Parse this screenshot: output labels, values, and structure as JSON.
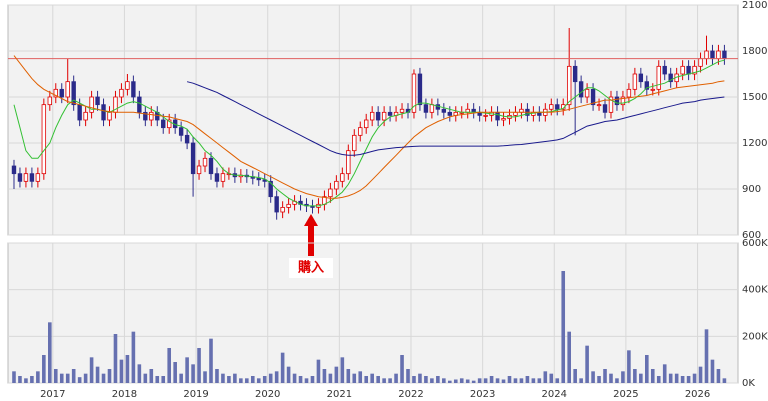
{
  "chart_data": [
    {
      "type": "candlestick",
      "ylim": [
        600,
        2100
      ],
      "yticks": [
        600,
        900,
        1200,
        1500,
        1800,
        2100
      ],
      "grid": true,
      "up_color": "#e00000",
      "down_color": "#2b2b8a",
      "reference_line": 1750,
      "reference_color": "#e06060",
      "annotation": "購入",
      "annotation_color": "#e00000",
      "open": [
        1050,
        1000,
        950,
        1000,
        950,
        1000,
        1450,
        1500,
        1550,
        1500,
        1600,
        1450,
        1350,
        1400,
        1500,
        1450,
        1350,
        1400,
        1500,
        1550,
        1600,
        1500,
        1400,
        1350,
        1400,
        1350,
        1300,
        1350,
        1300,
        1250,
        1200,
        1000,
        1050,
        1100,
        1000,
        950,
        1000,
        1000,
        980,
        990,
        980,
        970,
        960,
        950,
        850,
        750,
        780,
        800,
        820,
        800,
        790,
        780,
        800,
        850,
        900,
        950,
        1000,
        1150,
        1250,
        1300,
        1350,
        1400,
        1350,
        1400,
        1380,
        1400,
        1420,
        1400,
        1650,
        1450,
        1400,
        1450,
        1420,
        1400,
        1380,
        1400,
        1400,
        1420,
        1400,
        1380,
        1380,
        1400,
        1350,
        1360,
        1380,
        1400,
        1420,
        1380,
        1400,
        1380,
        1420,
        1450,
        1420,
        1450,
        1700,
        1600,
        1500,
        1550,
        1450,
        1450,
        1400,
        1500,
        1450,
        1500,
        1550,
        1650,
        1600,
        1550,
        1550,
        1700,
        1650,
        1600,
        1650,
        1700,
        1650,
        1700,
        1750,
        1800,
        1750,
        1800
      ],
      "high": [
        1090,
        1040,
        1040,
        1040,
        1040,
        1490,
        1540,
        1590,
        1590,
        1750,
        1640,
        1490,
        1440,
        1540,
        1540,
        1490,
        1440,
        1540,
        1590,
        1650,
        1640,
        1540,
        1440,
        1440,
        1440,
        1390,
        1390,
        1390,
        1340,
        1290,
        1240,
        1090,
        1140,
        1140,
        1040,
        1040,
        1040,
        1040,
        1030,
        1030,
        1020,
        1010,
        1000,
        990,
        890,
        820,
        840,
        860,
        860,
        840,
        830,
        840,
        890,
        940,
        990,
        1040,
        1190,
        1290,
        1340,
        1390,
        1440,
        1440,
        1440,
        1440,
        1440,
        1460,
        1460,
        1680,
        1690,
        1490,
        1490,
        1490,
        1460,
        1440,
        1440,
        1440,
        1460,
        1460,
        1440,
        1420,
        1440,
        1440,
        1400,
        1420,
        1440,
        1460,
        1460,
        1440,
        1440,
        1460,
        1490,
        1490,
        1490,
        1950,
        1740,
        1640,
        1590,
        1590,
        1490,
        1490,
        1540,
        1540,
        1540,
        1590,
        1690,
        1690,
        1640,
        1590,
        1740,
        1740,
        1690,
        1690,
        1740,
        1740,
        1740,
        1790,
        1900,
        1840,
        1840,
        1840
      ],
      "low": [
        900,
        910,
        910,
        910,
        910,
        960,
        1410,
        1460,
        1460,
        1460,
        1410,
        1310,
        1310,
        1360,
        1410,
        1310,
        1310,
        1360,
        1460,
        1510,
        1460,
        1360,
        1310,
        1310,
        1310,
        1260,
        1260,
        1260,
        1210,
        1160,
        850,
        960,
        1010,
        960,
        910,
        910,
        960,
        940,
        940,
        940,
        930,
        920,
        910,
        810,
        700,
        710,
        740,
        760,
        760,
        750,
        740,
        740,
        760,
        810,
        860,
        910,
        960,
        1110,
        1210,
        1260,
        1310,
        1310,
        1310,
        1340,
        1340,
        1360,
        1360,
        1360,
        1410,
        1360,
        1360,
        1380,
        1360,
        1340,
        1340,
        1360,
        1360,
        1360,
        1340,
        1340,
        1340,
        1310,
        1310,
        1320,
        1340,
        1360,
        1340,
        1340,
        1340,
        1340,
        1380,
        1380,
        1380,
        1410,
        1250,
        1460,
        1460,
        1410,
        1410,
        1360,
        1360,
        1410,
        1410,
        1460,
        1510,
        1560,
        1510,
        1510,
        1510,
        1610,
        1560,
        1560,
        1610,
        1610,
        1610,
        1660,
        1710,
        1710,
        1710,
        1710
      ],
      "close": [
        1000,
        950,
        1000,
        950,
        1000,
        1450,
        1500,
        1550,
        1500,
        1600,
        1450,
        1350,
        1400,
        1500,
        1450,
        1350,
        1400,
        1500,
        1550,
        1600,
        1500,
        1400,
        1350,
        1400,
        1350,
        1300,
        1350,
        1300,
        1250,
        1200,
        1000,
        1050,
        1100,
        1000,
        950,
        1000,
        1000,
        980,
        990,
        980,
        970,
        960,
        950,
        850,
        750,
        780,
        800,
        820,
        800,
        790,
        780,
        800,
        850,
        900,
        950,
        1000,
        1150,
        1250,
        1300,
        1350,
        1400,
        1350,
        1400,
        1380,
        1400,
        1420,
        1400,
        1650,
        1450,
        1400,
        1450,
        1420,
        1400,
        1380,
        1400,
        1400,
        1420,
        1400,
        1380,
        1380,
        1400,
        1350,
        1360,
        1380,
        1400,
        1420,
        1380,
        1400,
        1380,
        1420,
        1450,
        1420,
        1450,
        1700,
        1600,
        1500,
        1550,
        1450,
        1450,
        1400,
        1500,
        1450,
        1500,
        1550,
        1650,
        1600,
        1550,
        1550,
        1700,
        1650,
        1600,
        1650,
        1700,
        1650,
        1700,
        1750,
        1800,
        1750,
        1800,
        1750
      ],
      "series": [
        {
          "color": "#33c033",
          "values": [
            1450,
            1300,
            1150,
            1100,
            1100,
            1150,
            1200,
            1300,
            1380,
            1450,
            1480,
            1460,
            1440,
            1420,
            1420,
            1410,
            1400,
            1420,
            1440,
            1460,
            1470,
            1460,
            1440,
            1420,
            1400,
            1370,
            1340,
            1320,
            1310,
            1290,
            1240,
            1200,
            1150,
            1120,
            1080,
            1030,
            1000,
            990,
            990,
            985,
            980,
            975,
            965,
            940,
            900,
            870,
            840,
            820,
            800,
            790,
            790,
            790,
            800,
            820,
            850,
            880,
            930,
            1000,
            1080,
            1160,
            1240,
            1300,
            1340,
            1370,
            1380,
            1390,
            1400,
            1440,
            1460,
            1460,
            1450,
            1440,
            1430,
            1420,
            1410,
            1400,
            1400,
            1400,
            1400,
            1395,
            1390,
            1385,
            1375,
            1370,
            1370,
            1380,
            1390,
            1395,
            1400,
            1400,
            1405,
            1415,
            1425,
            1470,
            1500,
            1530,
            1560,
            1560,
            1540,
            1510,
            1480,
            1460,
            1460,
            1470,
            1490,
            1520,
            1560,
            1570,
            1580,
            1590,
            1610,
            1630,
            1640,
            1650,
            1660,
            1670,
            1690,
            1710,
            1730,
            1740
          ]
        },
        {
          "color": "#e06000",
          "values": [
            1770,
            1720,
            1670,
            1620,
            1580,
            1550,
            1530,
            1510,
            1490,
            1470,
            1460,
            1450,
            1440,
            1430,
            1420,
            1410,
            1405,
            1400,
            1400,
            1400,
            1400,
            1395,
            1390,
            1385,
            1380,
            1375,
            1370,
            1360,
            1350,
            1340,
            1320,
            1290,
            1260,
            1230,
            1200,
            1170,
            1140,
            1110,
            1080,
            1060,
            1040,
            1020,
            1000,
            980,
            960,
            940,
            920,
            900,
            885,
            870,
            860,
            850,
            845,
            840,
            840,
            845,
            855,
            870,
            890,
            920,
            960,
            1000,
            1040,
            1080,
            1120,
            1160,
            1200,
            1240,
            1270,
            1300,
            1320,
            1340,
            1355,
            1370,
            1380,
            1385,
            1390,
            1395,
            1400,
            1400,
            1400,
            1400,
            1400,
            1400,
            1400,
            1400,
            1400,
            1400,
            1400,
            1400,
            1400,
            1405,
            1410,
            1420,
            1430,
            1440,
            1450,
            1460,
            1470,
            1480,
            1480,
            1485,
            1490,
            1495,
            1500,
            1505,
            1510,
            1520,
            1530,
            1540,
            1550,
            1560,
            1565,
            1570,
            1575,
            1580,
            1585,
            1590,
            1600,
            1605
          ]
        },
        {
          "color": "#1a1a8c",
          "values": [
            null,
            null,
            null,
            null,
            null,
            null,
            null,
            null,
            null,
            null,
            null,
            null,
            null,
            null,
            null,
            null,
            null,
            null,
            null,
            null,
            null,
            null,
            null,
            null,
            null,
            null,
            null,
            null,
            null,
            1600,
            1590,
            1575,
            1560,
            1545,
            1530,
            1510,
            1490,
            1470,
            1450,
            1430,
            1410,
            1390,
            1370,
            1350,
            1330,
            1310,
            1290,
            1270,
            1250,
            1230,
            1210,
            1190,
            1170,
            1150,
            1135,
            1125,
            1120,
            1120,
            1125,
            1135,
            1145,
            1155,
            1160,
            1165,
            1170,
            1172,
            1175,
            1178,
            1180,
            1180,
            1180,
            1180,
            1180,
            1180,
            1180,
            1180,
            1180,
            1180,
            1180,
            1180,
            1180,
            1180,
            1182,
            1185,
            1188,
            1190,
            1195,
            1200,
            1205,
            1210,
            1215,
            1220,
            1230,
            1250,
            1270,
            1290,
            1310,
            1320,
            1330,
            1340,
            1345,
            1350,
            1360,
            1370,
            1380,
            1390,
            1400,
            1410,
            1420,
            1430,
            1440,
            1450,
            1460,
            1465,
            1470,
            1480,
            1485,
            1490,
            1495,
            1500
          ]
        }
      ]
    },
    {
      "type": "bar",
      "color": "#6670b0",
      "ylim": [
        0,
        600000
      ],
      "yticks": [
        {
          "value": 0,
          "label": "0K"
        },
        {
          "value": 200000,
          "label": "200K"
        },
        {
          "value": 400000,
          "label": "400K"
        },
        {
          "value": 600000,
          "label": "600K"
        }
      ],
      "grid": true,
      "categories": [
        null,
        null,
        null,
        null,
        null,
        null,
        null,
        "2017",
        null,
        null,
        null,
        null,
        null,
        null,
        null,
        null,
        null,
        null,
        null,
        "2018",
        null,
        null,
        null,
        null,
        null,
        null,
        null,
        null,
        null,
        null,
        null,
        "2019",
        null,
        null,
        null,
        null,
        null,
        null,
        null,
        null,
        null,
        null,
        null,
        "2020",
        null,
        null,
        null,
        null,
        null,
        null,
        null,
        null,
        null,
        null,
        null,
        "2021",
        null,
        null,
        null,
        null,
        null,
        null,
        null,
        null,
        null,
        null,
        null,
        "2022",
        null,
        null,
        null,
        null,
        null,
        null,
        null,
        null,
        null,
        null,
        null,
        "2023",
        null,
        null,
        null,
        null,
        null,
        null,
        null,
        null,
        null,
        null,
        null,
        "2024",
        null,
        null,
        null,
        null,
        null,
        null,
        null,
        null,
        null,
        null,
        null,
        "2025",
        null,
        null,
        null,
        null,
        null,
        null,
        null,
        null,
        null,
        null,
        null,
        "2026",
        null,
        null,
        null,
        null
      ],
      "values": [
        50000,
        30000,
        20000,
        30000,
        50000,
        120000,
        260000,
        60000,
        40000,
        40000,
        60000,
        25000,
        40000,
        110000,
        70000,
        40000,
        60000,
        210000,
        100000,
        120000,
        220000,
        80000,
        40000,
        60000,
        30000,
        30000,
        150000,
        90000,
        40000,
        110000,
        80000,
        150000,
        50000,
        190000,
        60000,
        40000,
        30000,
        40000,
        20000,
        20000,
        30000,
        20000,
        30000,
        40000,
        50000,
        130000,
        70000,
        40000,
        30000,
        20000,
        30000,
        100000,
        60000,
        40000,
        70000,
        110000,
        60000,
        40000,
        50000,
        30000,
        40000,
        30000,
        20000,
        20000,
        40000,
        120000,
        60000,
        30000,
        40000,
        30000,
        20000,
        30000,
        20000,
        10000,
        15000,
        20000,
        15000,
        10000,
        20000,
        20000,
        30000,
        20000,
        15000,
        30000,
        20000,
        20000,
        30000,
        20000,
        20000,
        50000,
        40000,
        20000,
        480000,
        220000,
        60000,
        20000,
        160000,
        50000,
        30000,
        60000,
        40000,
        20000,
        50000,
        140000,
        60000,
        40000,
        120000,
        60000,
        30000,
        80000,
        40000,
        40000,
        30000,
        30000,
        40000,
        70000,
        230000,
        100000,
        60000,
        20000
      ]
    }
  ]
}
